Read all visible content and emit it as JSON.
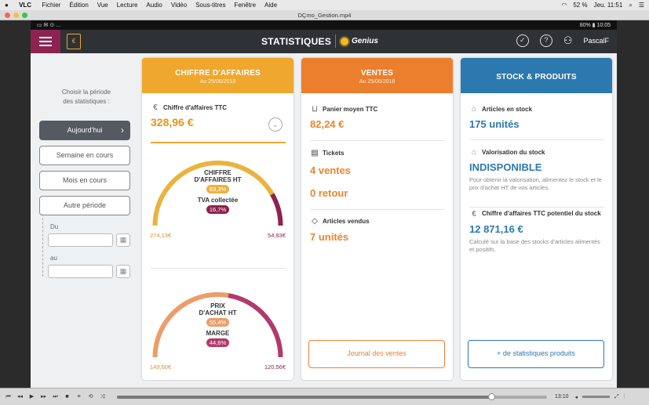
{
  "mac_menu": {
    "apple": "",
    "app": "VLC",
    "items": [
      "Fichier",
      "Édition",
      "Vue",
      "Lecture",
      "Audio",
      "Vidéo",
      "Sous-titres",
      "Fenêtre",
      "Aide"
    ],
    "battery": "52 %",
    "clock": "Jeu. 11:51"
  },
  "window": {
    "title": "DÇmo_Gestion.mp4"
  },
  "android_status": {
    "left": "▭ ✉ ⊙ ...",
    "battery": "80%",
    "time": "10:05"
  },
  "header": {
    "title": "STATISTIQUES",
    "brand": "Genius",
    "user": "PascalF",
    "colors": {
      "bar": "#2f3235",
      "menu": "#8e2250"
    }
  },
  "sidebar": {
    "prompt_line1": "Choisir la période",
    "prompt_line2": "des statistiques :",
    "buttons": [
      {
        "label": "Aujourd'hui",
        "active": true
      },
      {
        "label": "Semaine en cours",
        "active": false
      },
      {
        "label": "Mois en cours",
        "active": false
      },
      {
        "label": "Autre période",
        "active": false
      }
    ],
    "from_label": "Du",
    "to_label": "au"
  },
  "ca_card": {
    "title": "CHIFFRE D'AFFAIRES",
    "date": "Au 25/06/2018",
    "color": "#f0a72e",
    "ttc_label": "Chiffre d'affaires TTC",
    "ttc_value": "328,96 €",
    "gauge1": {
      "label_a": "CHIFFRE\nD'AFFAIRES HT",
      "pct_a": "83,3%",
      "label_b": "TVA collectée",
      "pct_b": "16,7%",
      "left_value": "274,13€",
      "right_value": "54,83€",
      "fraction_a": 0.833
    },
    "gauge2": {
      "label_a": "PRIX\nD'ACHAT HT",
      "pct_a": "55,4%",
      "label_b": "MARGE",
      "pct_b": "44,6%",
      "left_value": "149,60€",
      "right_value": "120,56€",
      "fraction_a": 0.554
    }
  },
  "ventes_card": {
    "title": "VENTES",
    "date": "Au 25/06/2018",
    "color": "#ec7f2d",
    "panier_label": "Panier moyen TTC",
    "panier_value": "82,24 €",
    "tickets_label": "Tickets",
    "tickets_sales": "4 ventes",
    "tickets_returns": "0 retour",
    "articles_label": "Articles vendus",
    "articles_value": "7 unités",
    "button": "Journal des ventes"
  },
  "stock_card": {
    "title": "STOCK & PRODUITS",
    "color": "#2b79ae",
    "instock_label": "Articles en stock",
    "instock_value": "175 unités",
    "valo_label": "Valorisation du stock",
    "valo_value": "INDISPONIBLE",
    "valo_note": "Pour obtenir la valorisation, alimentez le stock et le prix d'achat HT de vos articles.",
    "potential_label": "Chiffre d'affaires TTC potentiel du stock",
    "potential_value": "12 871,16 €",
    "potential_note": "Calculé sur la base des stocks d'articles alimentés et positifs.",
    "button": "+ de statistiques produits"
  },
  "player": {
    "time": "13:10",
    "progress": 0.87
  }
}
